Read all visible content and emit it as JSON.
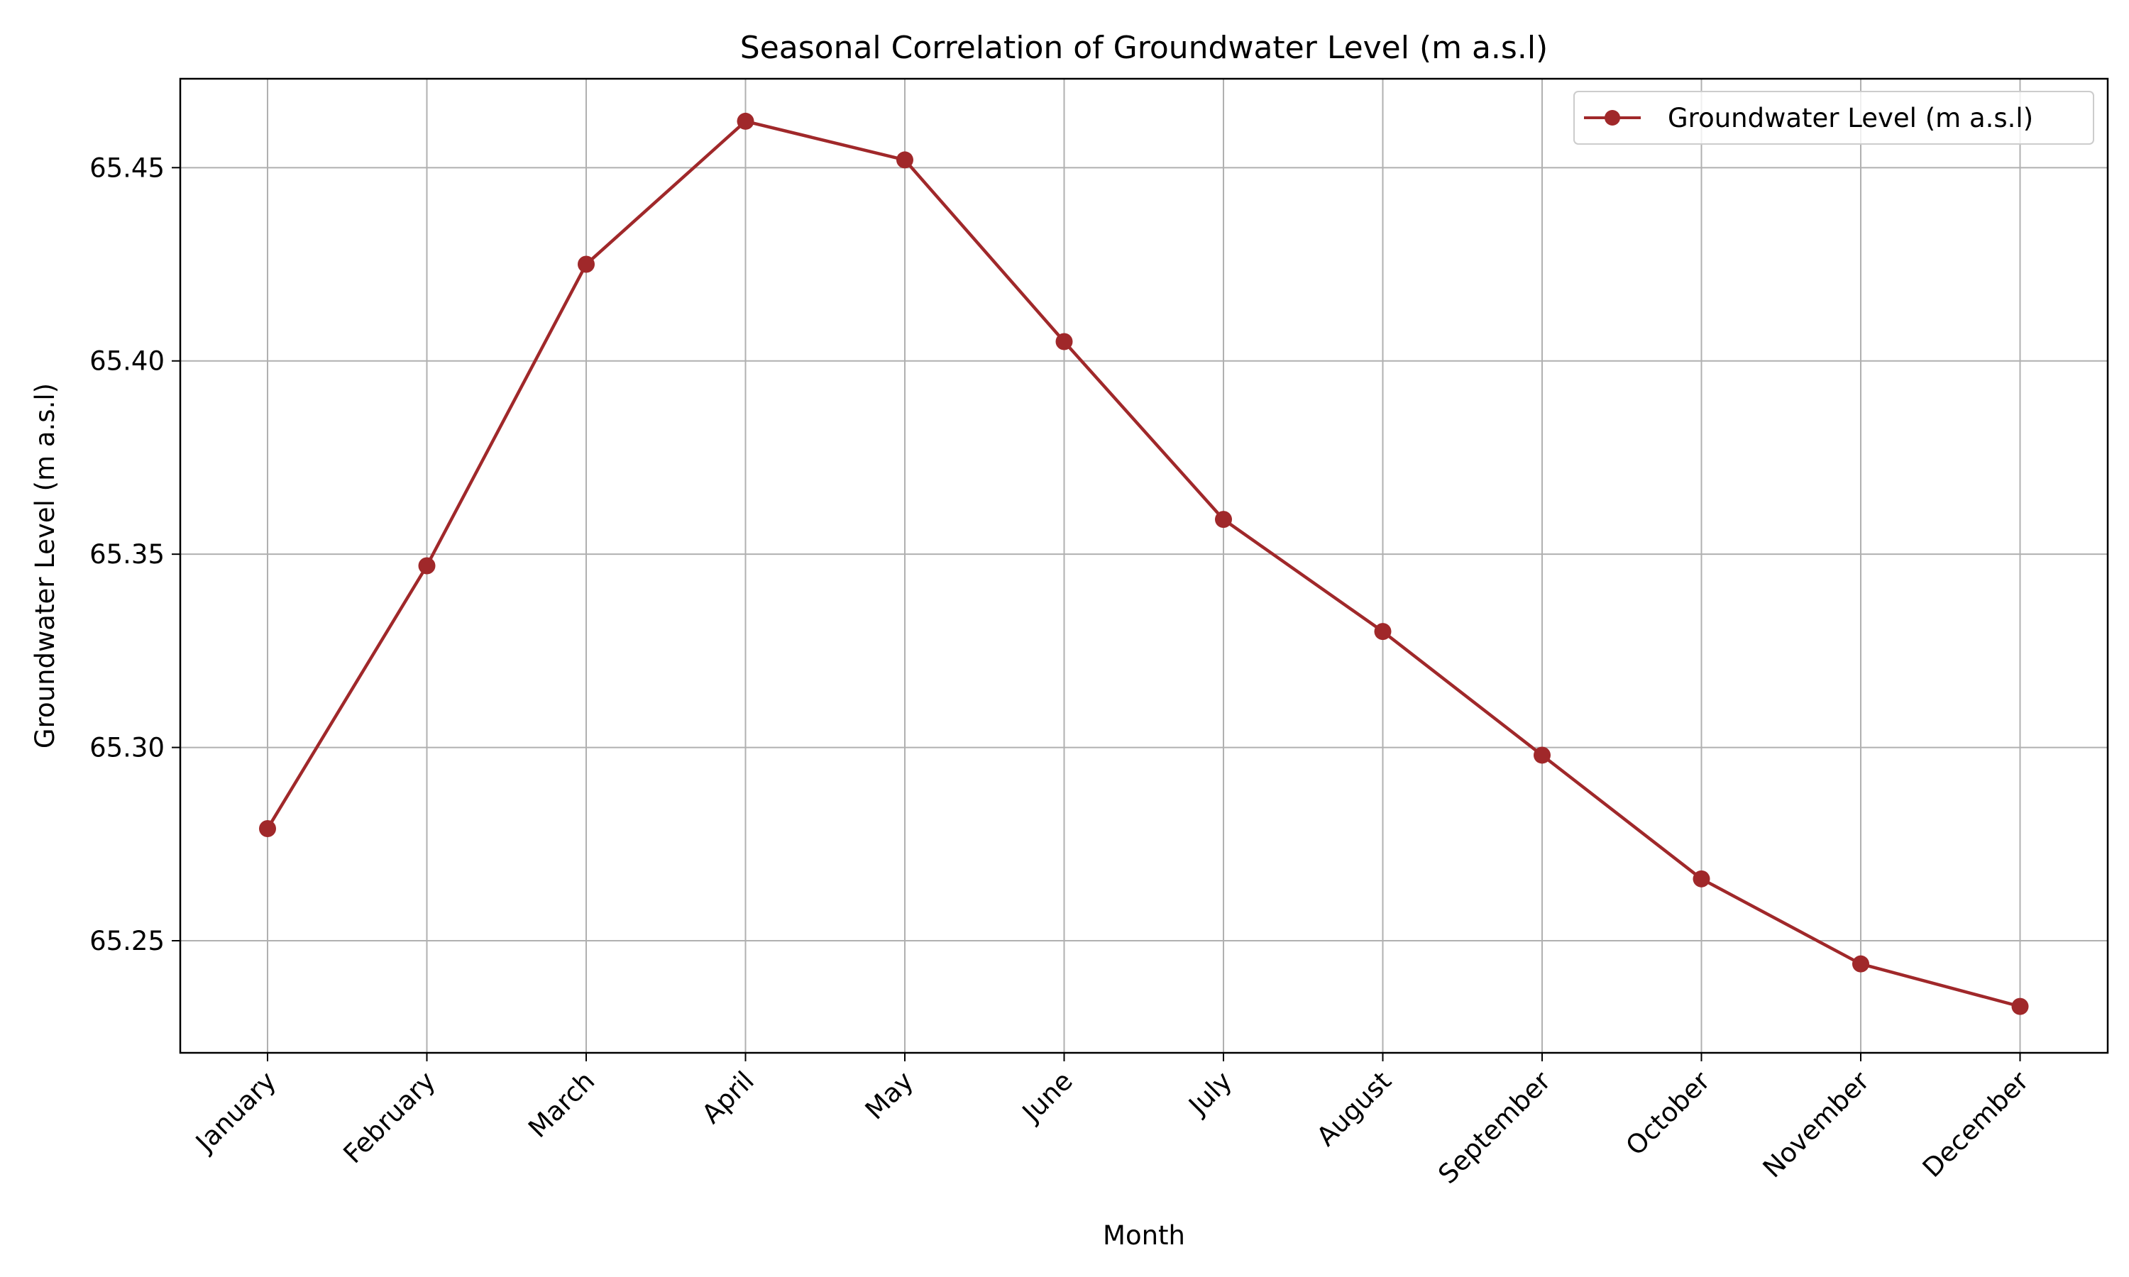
{
  "chart_data": {
    "type": "line",
    "title": "Seasonal Correlation of Groundwater Level (m a.s.l)",
    "xlabel": "Month",
    "ylabel": "Groundwater Level (m a.s.l)",
    "categories": [
      "January",
      "February",
      "March",
      "April",
      "May",
      "June",
      "July",
      "August",
      "September",
      "October",
      "November",
      "December"
    ],
    "series": [
      {
        "name": "Groundwater Level (m a.s.l)",
        "color": "#a0282a",
        "marker": "circle",
        "values": [
          65.279,
          65.347,
          65.425,
          65.462,
          65.452,
          65.405,
          65.359,
          65.33,
          65.298,
          65.266,
          65.244,
          65.233
        ]
      }
    ],
    "ylim": [
      65.221,
      65.473
    ],
    "yticks": [
      65.25,
      65.3,
      65.35,
      65.4,
      65.45
    ],
    "ytick_labels": [
      "65.25",
      "65.30",
      "65.35",
      "65.40",
      "65.45"
    ],
    "grid": true,
    "legend_position": "top-right"
  }
}
